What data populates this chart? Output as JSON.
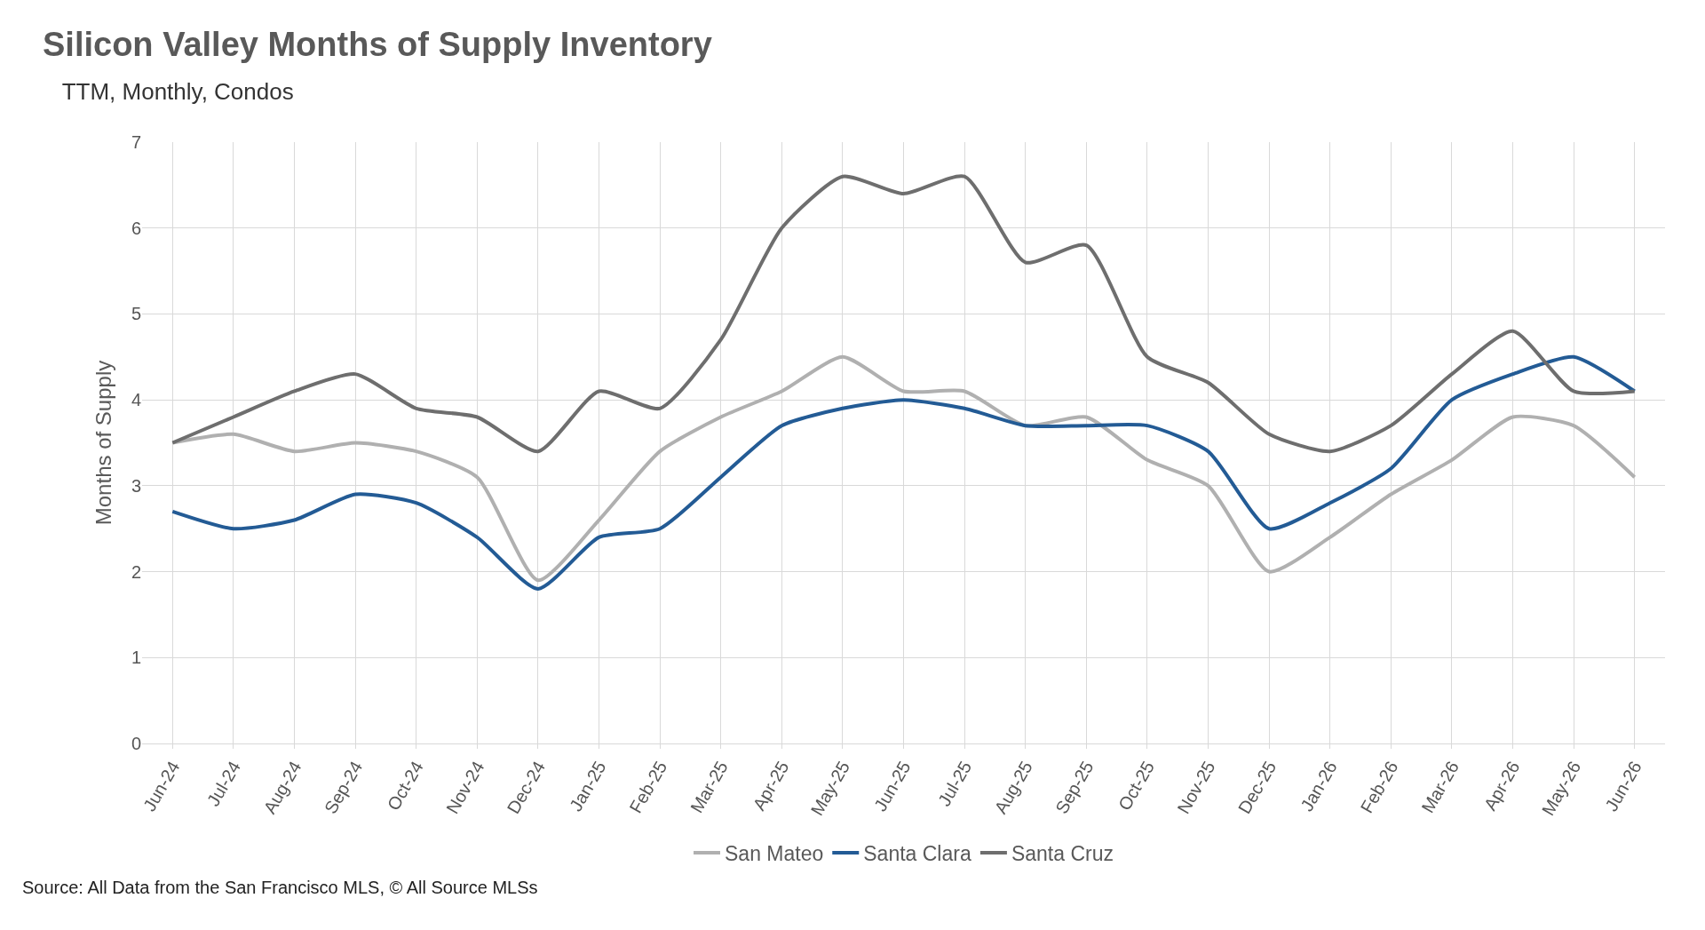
{
  "chart_data": {
    "type": "line",
    "title": "Silicon Valley Months of Supply Inventory",
    "subtitle": "TTM, Monthly, Condos",
    "ylabel": "Months of Supply",
    "categories": [
      "Jun-24",
      "Jul-24",
      "Aug-24",
      "Sep-24",
      "Oct-24",
      "Nov-24",
      "Dec-24",
      "Jan-25",
      "Feb-25",
      "Mar-25",
      "Apr-25",
      "May-25",
      "Jun-25",
      "Jul-25",
      "Aug-25",
      "Sep-25",
      "Oct-25",
      "Nov-25",
      "Dec-25",
      "Jan-26",
      "Feb-26",
      "Mar-26",
      "Apr-26",
      "May-26",
      "Jun-26"
    ],
    "series": [
      {
        "name": "San Mateo",
        "color": "#b0b0b0",
        "values": [
          3.5,
          3.6,
          3.4,
          3.5,
          3.4,
          3.1,
          1.9,
          2.6,
          3.4,
          3.8,
          4.1,
          4.5,
          4.1,
          4.1,
          3.7,
          3.8,
          3.3,
          3.0,
          2.0,
          2.4,
          2.9,
          3.3,
          3.8,
          3.7,
          3.1
        ]
      },
      {
        "name": "Santa Clara",
        "color": "#235b95",
        "values": [
          2.7,
          2.5,
          2.6,
          2.9,
          2.8,
          2.4,
          1.8,
          2.4,
          2.5,
          3.1,
          3.7,
          3.9,
          4.0,
          3.9,
          3.7,
          3.7,
          3.7,
          3.4,
          2.5,
          2.8,
          3.2,
          4.0,
          4.3,
          4.5,
          4.1
        ]
      },
      {
        "name": "Santa Cruz",
        "color": "#6e6e6e",
        "values": [
          3.5,
          3.8,
          4.1,
          4.3,
          3.9,
          3.8,
          3.4,
          4.1,
          3.9,
          4.7,
          6.0,
          6.6,
          6.4,
          6.6,
          5.6,
          5.8,
          4.5,
          4.2,
          3.6,
          3.4,
          3.7,
          4.3,
          4.8,
          4.1,
          4.1
        ]
      }
    ],
    "ylim": [
      0,
      7
    ],
    "yticks": [
      0,
      1,
      2,
      3,
      4,
      5,
      6,
      7
    ],
    "grid": true,
    "legend": "bottom",
    "annotations": [
      "Source: All Data from the San Francisco MLS, © All Source MLSs"
    ]
  }
}
